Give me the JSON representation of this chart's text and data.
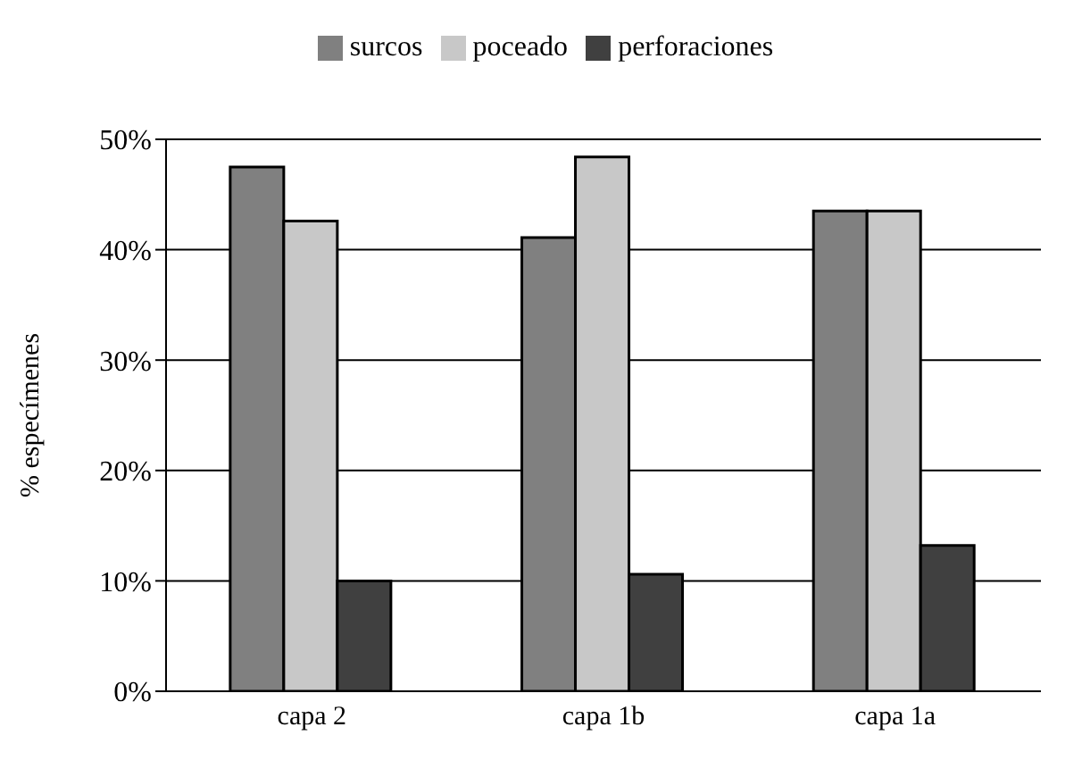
{
  "chart_data": {
    "type": "bar",
    "ylabel": "% especímenes",
    "categories": [
      "capa 2",
      "capa 1b",
      "capa 1a"
    ],
    "series": [
      {
        "name": "surcos",
        "color": "#808080",
        "values": [
          47.5,
          41.1,
          43.5
        ]
      },
      {
        "name": "poceado",
        "color": "#c8c8c8",
        "values": [
          42.6,
          48.4,
          43.5
        ]
      },
      {
        "name": "perforaciones",
        "color": "#404040",
        "values": [
          10,
          10.6,
          13.2
        ]
      }
    ],
    "ylim": [
      0,
      50
    ],
    "yticks": [
      {
        "value": 0,
        "label": "0%"
      },
      {
        "value": 10,
        "label": "10%"
      },
      {
        "value": 20,
        "label": "20%"
      },
      {
        "value": 30,
        "label": "30%"
      },
      {
        "value": 40,
        "label": "40%"
      },
      {
        "value": 50,
        "label": "50%"
      }
    ],
    "grid": "y",
    "legend": "top"
  }
}
